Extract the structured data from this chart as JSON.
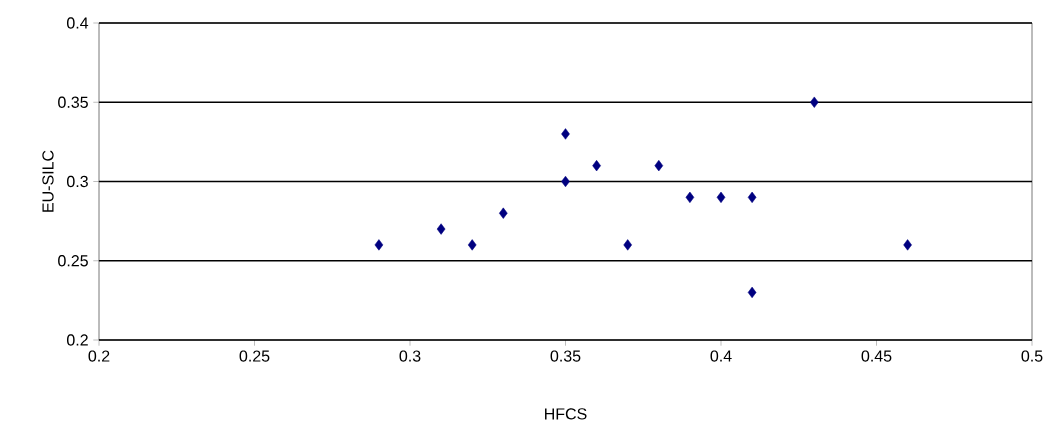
{
  "chart_data": {
    "type": "scatter",
    "xlabel": "HFCS",
    "ylabel": "EU-SILC",
    "x": [
      0.29,
      0.31,
      0.32,
      0.33,
      0.35,
      0.35,
      0.36,
      0.37,
      0.38,
      0.39,
      0.4,
      0.41,
      0.41,
      0.43,
      0.46
    ],
    "values": [
      0.26,
      0.27,
      0.26,
      0.28,
      0.33,
      0.3,
      0.31,
      0.26,
      0.31,
      0.29,
      0.29,
      0.29,
      0.23,
      0.35,
      0.26
    ],
    "color": "#000080",
    "marker": "diamond",
    "grid": "y",
    "xlim": [
      0.2,
      0.5
    ],
    "xticks": [
      0.2,
      0.25,
      0.3,
      0.35,
      0.4,
      0.45,
      0.5
    ],
    "ylim": [
      0.2,
      0.4
    ],
    "yticks": [
      0.2,
      0.25,
      0.3,
      0.35,
      0.4
    ]
  }
}
